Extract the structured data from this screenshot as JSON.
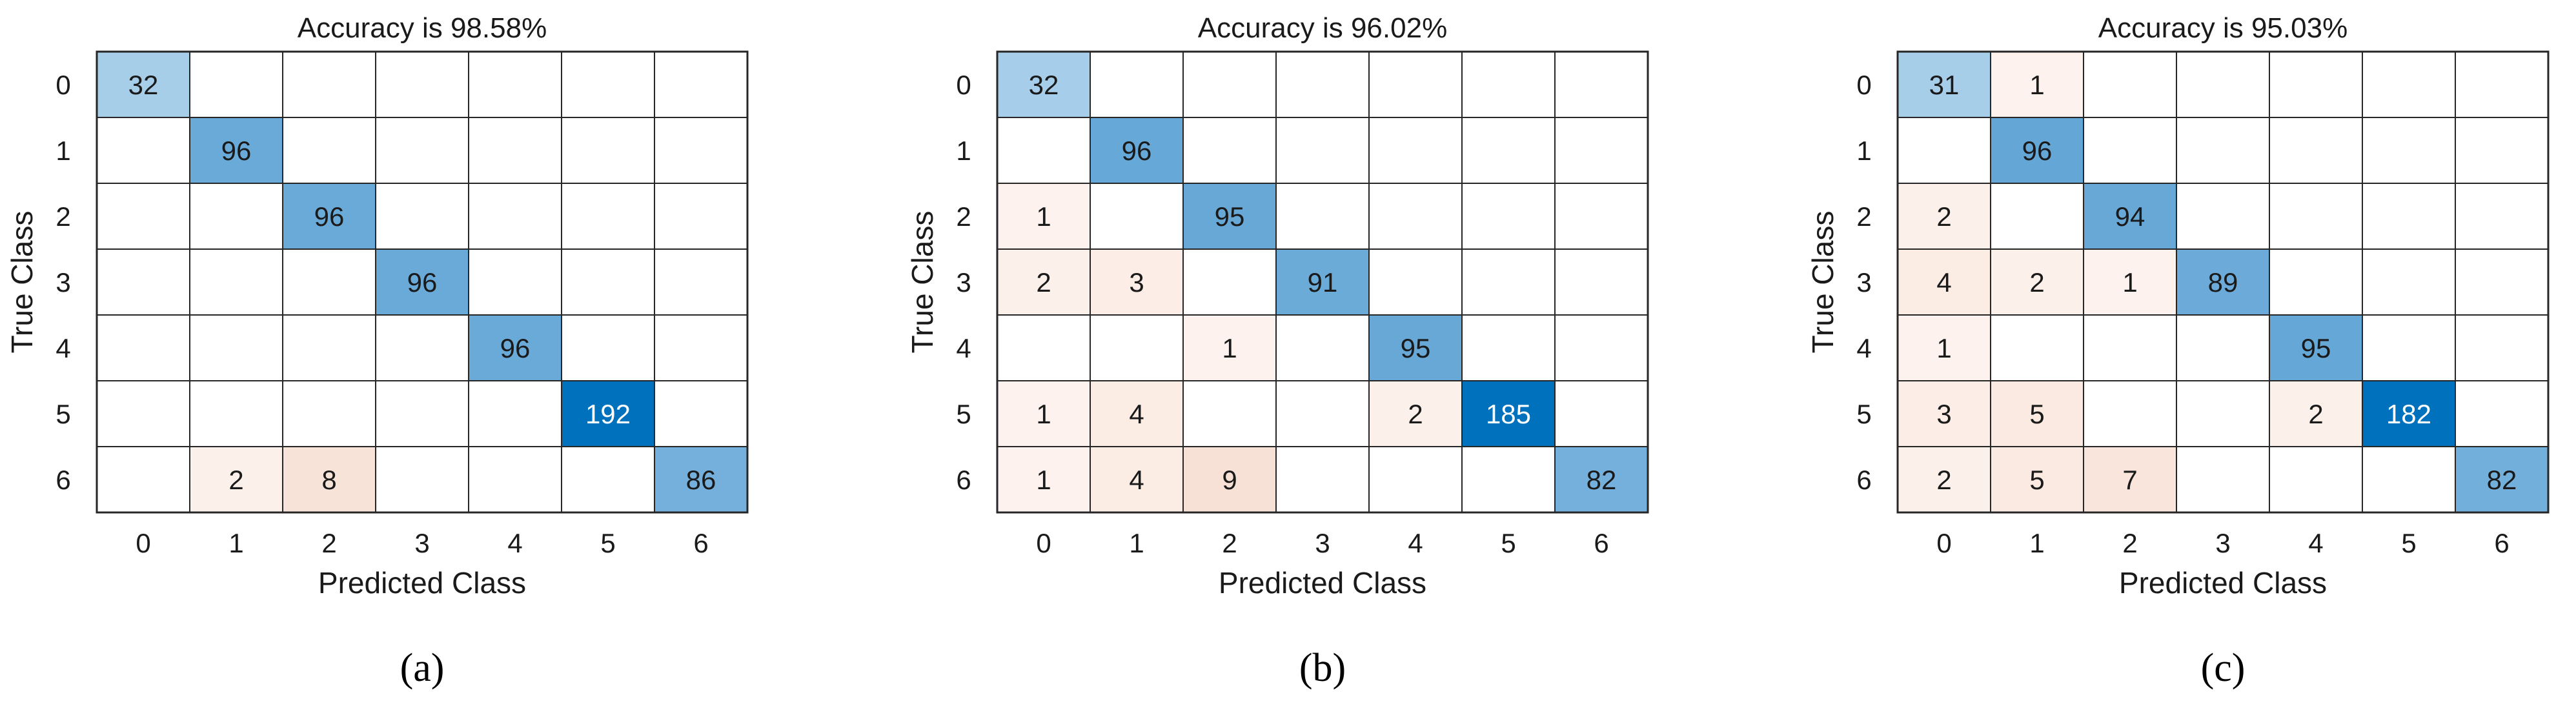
{
  "chart_data": [
    {
      "type": "heatmap",
      "title": "Accuracy is 98.58%",
      "caption": "(a)",
      "xlabel": "Predicted Class",
      "ylabel": "True Class",
      "x_categories": [
        "0",
        "1",
        "2",
        "3",
        "4",
        "5",
        "6"
      ],
      "y_categories": [
        "0",
        "1",
        "2",
        "3",
        "4",
        "5",
        "6"
      ],
      "matrix": [
        [
          32,
          0,
          0,
          0,
          0,
          0,
          0
        ],
        [
          0,
          96,
          0,
          0,
          0,
          0,
          0
        ],
        [
          0,
          0,
          96,
          0,
          0,
          0,
          0
        ],
        [
          0,
          0,
          0,
          96,
          0,
          0,
          0
        ],
        [
          0,
          0,
          0,
          0,
          96,
          0,
          0
        ],
        [
          0,
          0,
          0,
          0,
          0,
          192,
          0
        ],
        [
          0,
          2,
          8,
          0,
          0,
          0,
          86
        ]
      ]
    },
    {
      "type": "heatmap",
      "title": "Accuracy is 96.02%",
      "caption": "(b)",
      "xlabel": "Predicted Class",
      "ylabel": "True Class",
      "x_categories": [
        "0",
        "1",
        "2",
        "3",
        "4",
        "5",
        "6"
      ],
      "y_categories": [
        "0",
        "1",
        "2",
        "3",
        "4",
        "5",
        "6"
      ],
      "matrix": [
        [
          32,
          0,
          0,
          0,
          0,
          0,
          0
        ],
        [
          0,
          96,
          0,
          0,
          0,
          0,
          0
        ],
        [
          1,
          0,
          95,
          0,
          0,
          0,
          0
        ],
        [
          2,
          3,
          0,
          91,
          0,
          0,
          0
        ],
        [
          0,
          0,
          1,
          0,
          95,
          0,
          0
        ],
        [
          1,
          4,
          0,
          0,
          2,
          185,
          0
        ],
        [
          1,
          4,
          9,
          0,
          0,
          0,
          82
        ]
      ]
    },
    {
      "type": "heatmap",
      "title": "Accuracy is 95.03%",
      "caption": "(c)",
      "xlabel": "Predicted Class",
      "ylabel": "True Class",
      "x_categories": [
        "0",
        "1",
        "2",
        "3",
        "4",
        "5",
        "6"
      ],
      "y_categories": [
        "0",
        "1",
        "2",
        "3",
        "4",
        "5",
        "6"
      ],
      "matrix": [
        [
          31,
          1,
          0,
          0,
          0,
          0,
          0
        ],
        [
          0,
          96,
          0,
          0,
          0,
          0,
          0
        ],
        [
          2,
          0,
          94,
          0,
          0,
          0,
          0
        ],
        [
          4,
          2,
          1,
          89,
          0,
          0,
          0
        ],
        [
          1,
          0,
          0,
          0,
          95,
          0,
          0
        ],
        [
          3,
          5,
          0,
          0,
          2,
          182,
          0
        ],
        [
          2,
          5,
          7,
          0,
          0,
          0,
          82
        ]
      ]
    }
  ],
  "colors": {
    "diagonal_low": "#c6e0f2",
    "diagonal_mid": "#6aaad8",
    "diagonal_high": "#0071bd",
    "offdiag_low": "#fdf2ed",
    "offdiag_high": "#f7e1d6",
    "grid": "#262626"
  }
}
